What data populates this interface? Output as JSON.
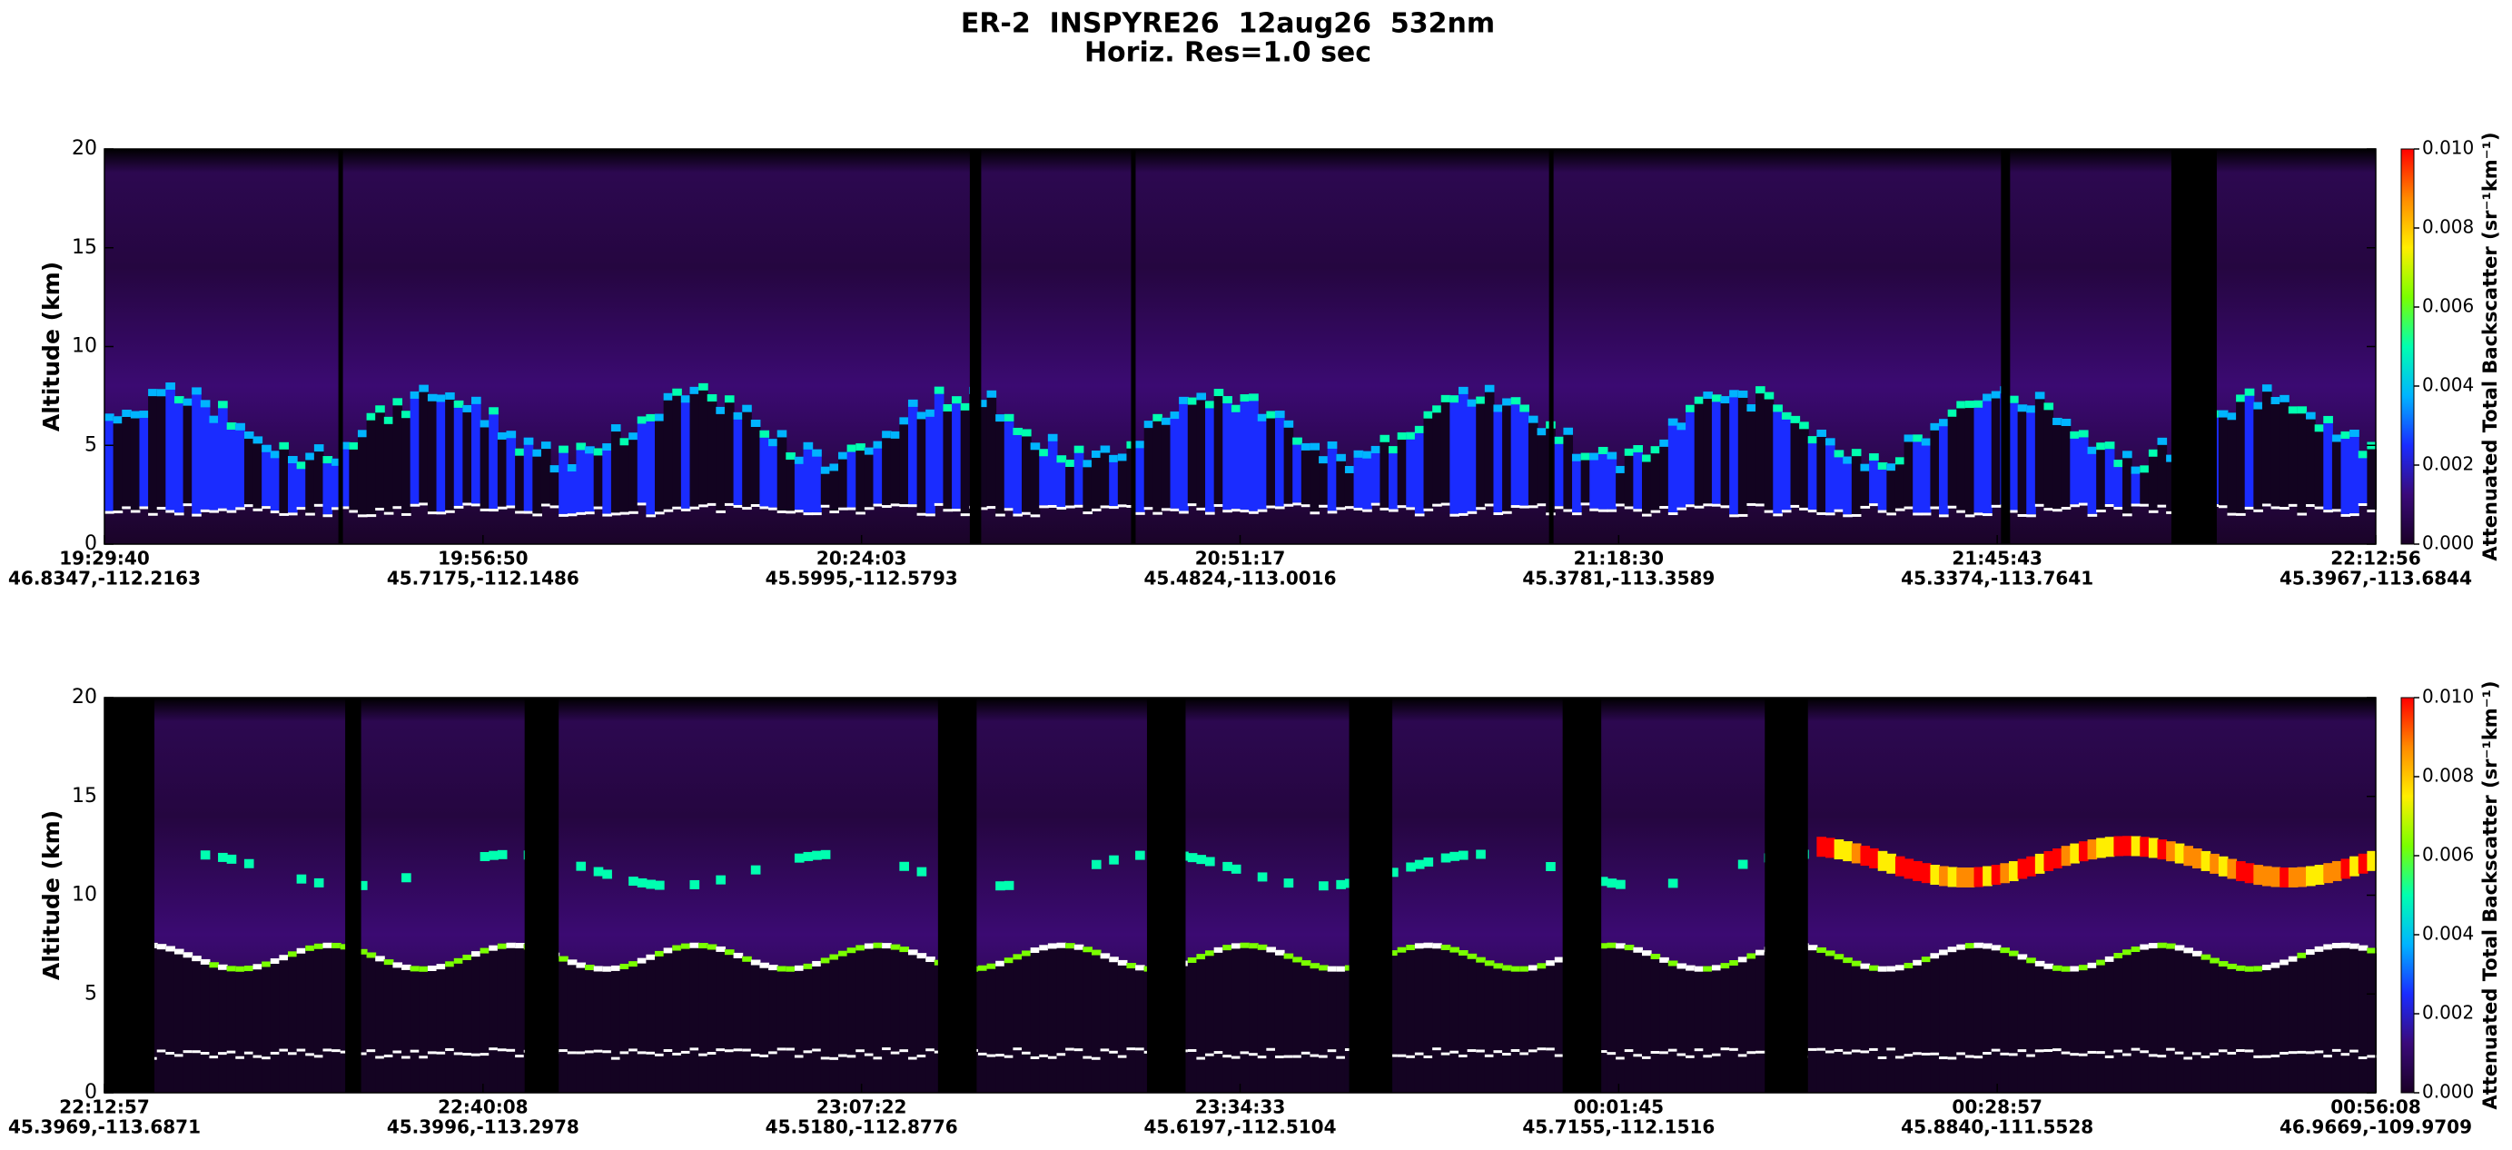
{
  "chart_data": [
    {
      "type": "heatmap",
      "title": "ER-2  INSPYRE26  12aug26  532nm",
      "subtitle": "Horiz. Res=1.0 sec",
      "ylabel": "Altitude (km)",
      "ylim": [
        0,
        20
      ],
      "yticks": [
        0,
        5,
        10,
        15,
        20
      ],
      "categories": [
        "19:29:40",
        "19:56:50",
        "20:24:03",
        "20:51:17",
        "21:18:30",
        "21:45:43",
        "22:12:56"
      ],
      "locations": [
        "46.8347,-112.2163",
        "45.7175,-112.1486",
        "45.5995,-112.5793",
        "45.4824,-113.0016",
        "45.3781,-113.3589",
        "45.3374,-113.7641",
        "45.3967,-113.6844"
      ],
      "colorbar": {
        "label": "Attenuated Total Backscatter (sr⁻¹km⁻¹)",
        "lim": [
          0,
          0.01
        ],
        "ticks": [
          {
            "value": 0,
            "label": "0.000"
          },
          {
            "value": 0.002,
            "label": "0.002"
          },
          {
            "value": 0.004,
            "label": "0.004"
          },
          {
            "value": 0.006,
            "label": "0.006"
          },
          {
            "value": 0.008,
            "label": "0.008"
          },
          {
            "value": 0.01,
            "label": "0.010"
          }
        ]
      },
      "colormap": [
        "#1a0026",
        "#3a0a7a",
        "#1a2cff",
        "#00b4ff",
        "#00ffb0",
        "#7aff00",
        "#ffee00",
        "#ff8a00",
        "#ff0000"
      ]
    },
    {
      "type": "heatmap",
      "ylabel": "Altitude (km)",
      "ylim": [
        0,
        20
      ],
      "yticks": [
        0,
        5,
        10,
        15,
        20
      ],
      "categories": [
        "22:12:57",
        "22:40:08",
        "23:07:22",
        "23:34:33",
        "00:01:45",
        "00:28:57",
        "00:56:08"
      ],
      "locations": [
        "45.3969,-113.6871",
        "45.3996,-113.2978",
        "45.5180,-112.8776",
        "45.6197,-112.5104",
        "45.7155,-112.1516",
        "45.8840,-111.5528",
        "46.9669,-109.9709"
      ],
      "colorbar": {
        "label": "Attenuated Total Backscatter (sr⁻¹km⁻¹)",
        "lim": [
          0,
          0.01
        ],
        "ticks": [
          {
            "value": 0,
            "label": "0.000"
          },
          {
            "value": 0.002,
            "label": "0.002"
          },
          {
            "value": 0.004,
            "label": "0.004"
          },
          {
            "value": 0.006,
            "label": "0.006"
          },
          {
            "value": 0.008,
            "label": "0.008"
          },
          {
            "value": 0.01,
            "label": "0.010"
          }
        ]
      },
      "colormap": [
        "#1a0026",
        "#3a0a7a",
        "#1a2cff",
        "#00b4ff",
        "#00ffb0",
        "#7aff00",
        "#ffee00",
        "#ff8a00",
        "#ff0000"
      ]
    }
  ]
}
